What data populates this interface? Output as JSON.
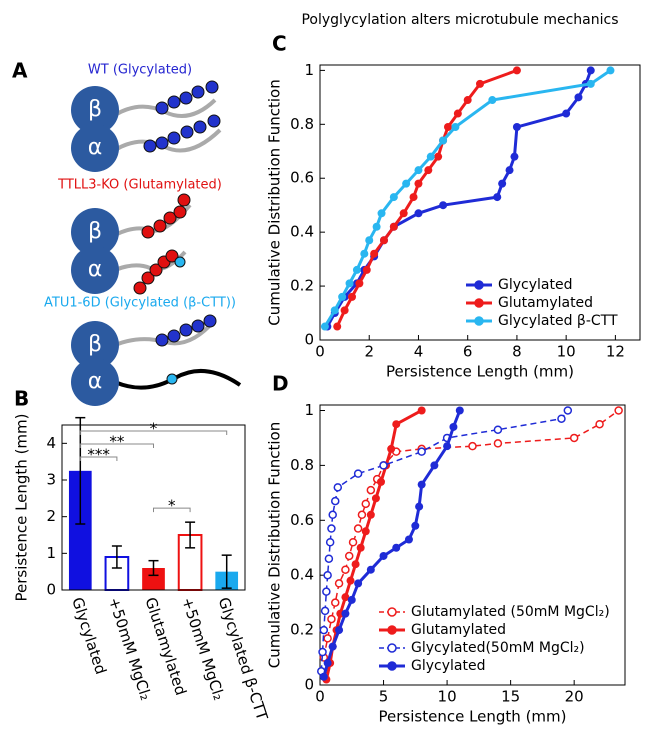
{
  "title": "Polyglycylation alters microtubule mechanics",
  "diagram": {
    "label": "A",
    "beta": "β",
    "alpha": "α",
    "rows": [
      {
        "caption": "WT (Glycylated)"
      },
      {
        "caption": "TTLL3-KO (Glutamylated)"
      },
      {
        "caption": "ATU1-6D (Glycylated (β-CTT))"
      }
    ]
  },
  "chart_data": [
    {
      "type": "bar",
      "label": "B",
      "ylabel": "Persistence Length (mm)",
      "categories": [
        "Glycylated",
        "+50mM MgCl₂",
        "Glutamylated",
        "+50mM MgCl₂",
        "Glycylated β-CTT"
      ],
      "values": [
        3.25,
        0.9,
        0.6,
        1.5,
        0.5
      ],
      "errors": [
        1.45,
        0.3,
        0.2,
        0.35,
        0.45
      ],
      "colors": [
        "#1010e0",
        "#1010e0",
        "#ee1111",
        "#ee1111",
        "#1aa9ee"
      ],
      "hollow": [
        false,
        true,
        false,
        true,
        false
      ],
      "ylim": [
        0,
        4.5
      ],
      "yticks": [
        0,
        1,
        2,
        3,
        4
      ],
      "significance": [
        {
          "label": "*",
          "from": 0,
          "to": 4
        },
        {
          "label": "**",
          "from": 0,
          "to": 2
        },
        {
          "label": "***",
          "from": 0,
          "to": 1
        },
        {
          "label": "*",
          "from": 2,
          "to": 3
        }
      ]
    },
    {
      "type": "line",
      "label": "C",
      "xlabel": "Persistence Length (mm)",
      "ylabel": "Cumulative Distribution Function",
      "xlim": [
        0,
        13
      ],
      "xticks": [
        0,
        2,
        4,
        6,
        8,
        10,
        12
      ],
      "ylim": [
        0,
        1.02
      ],
      "yticks": [
        0,
        0.2,
        0.4,
        0.6,
        0.8,
        1
      ],
      "legend": "lower right",
      "series": [
        {
          "name": "Glycylated",
          "color": "#1f2bd6",
          "dashed": false,
          "hollow": false,
          "x": [
            0.3,
            0.6,
            1.0,
            1.5,
            1.8,
            2.2,
            2.6,
            3.0,
            4.0,
            5.0,
            7.2,
            7.4,
            7.7,
            7.9,
            8.0,
            10.0,
            10.5,
            10.8,
            11.0
          ],
          "values": [
            0.05,
            0.1,
            0.16,
            0.21,
            0.26,
            0.31,
            0.37,
            0.42,
            0.47,
            0.5,
            0.53,
            0.58,
            0.63,
            0.68,
            0.79,
            0.84,
            0.9,
            0.95,
            1.0
          ]
        },
        {
          "name": "Glutamylated",
          "color": "#ee1c1c",
          "dashed": false,
          "hollow": false,
          "x": [
            0.7,
            1.0,
            1.3,
            1.6,
            1.9,
            2.2,
            2.6,
            3.0,
            3.4,
            3.8,
            4.0,
            4.4,
            4.8,
            5.0,
            5.2,
            5.6,
            6.0,
            6.5,
            8.0
          ],
          "values": [
            0.05,
            0.11,
            0.16,
            0.21,
            0.26,
            0.32,
            0.37,
            0.42,
            0.47,
            0.53,
            0.58,
            0.63,
            0.68,
            0.74,
            0.79,
            0.84,
            0.89,
            0.95,
            1.0
          ]
        },
        {
          "name": "Glycylated β-CTT",
          "color": "#29b6f0",
          "dashed": false,
          "hollow": false,
          "x": [
            0.2,
            0.6,
            0.9,
            1.2,
            1.5,
            1.8,
            2.0,
            2.3,
            2.5,
            3.0,
            3.5,
            4.0,
            4.5,
            5.0,
            5.5,
            7.0,
            11.0,
            11.8
          ],
          "values": [
            0.05,
            0.11,
            0.16,
            0.21,
            0.26,
            0.32,
            0.37,
            0.42,
            0.47,
            0.53,
            0.58,
            0.63,
            0.68,
            0.74,
            0.79,
            0.89,
            0.95,
            1.0
          ]
        }
      ]
    },
    {
      "type": "line",
      "label": "D",
      "xlabel": "Persistence Length (mm)",
      "ylabel": "Cumulative Distribution Function",
      "xlim": [
        0,
        24
      ],
      "xticks": [
        0,
        5,
        10,
        15,
        20
      ],
      "ylim": [
        0,
        1.02
      ],
      "yticks": [
        0,
        0.2,
        0.4,
        0.6,
        0.8,
        1
      ],
      "legend": "lower right",
      "series": [
        {
          "name": "Glutamylated (50mM MgCl₂)",
          "color": "#ee1c1c",
          "dashed": true,
          "hollow": true,
          "x": [
            0.3,
            0.6,
            0.9,
            1.2,
            1.5,
            2,
            2.3,
            2.6,
            3,
            3.3,
            3.6,
            4,
            4.5,
            5,
            6,
            8,
            12,
            14,
            20,
            22,
            23.5
          ],
          "values": [
            0.1,
            0.17,
            0.24,
            0.3,
            0.37,
            0.42,
            0.47,
            0.52,
            0.57,
            0.62,
            0.66,
            0.71,
            0.75,
            0.8,
            0.85,
            0.86,
            0.87,
            0.88,
            0.9,
            0.95,
            1.0
          ]
        },
        {
          "name": "Glutamylated",
          "color": "#ee1c1c",
          "dashed": false,
          "hollow": false,
          "x": [
            0.5,
            0.8,
            1,
            1.3,
            1.6,
            2,
            2.4,
            2.8,
            3.2,
            3.6,
            4,
            4.4,
            4.8,
            5.2,
            5.6,
            6,
            8
          ],
          "values": [
            0.02,
            0.08,
            0.14,
            0.2,
            0.26,
            0.32,
            0.38,
            0.44,
            0.5,
            0.56,
            0.62,
            0.68,
            0.74,
            0.8,
            0.86,
            0.95,
            1.0
          ]
        },
        {
          "name": "Glycylated(50mM MgCl₂)",
          "color": "#1f2bd6",
          "dashed": true,
          "hollow": true,
          "x": [
            0.1,
            0.2,
            0.3,
            0.4,
            0.5,
            0.6,
            0.7,
            0.8,
            0.9,
            1.0,
            1.2,
            1.4,
            3,
            5,
            8,
            10,
            14,
            19,
            19.5
          ],
          "values": [
            0.05,
            0.12,
            0.2,
            0.27,
            0.34,
            0.4,
            0.46,
            0.52,
            0.57,
            0.62,
            0.67,
            0.72,
            0.77,
            0.8,
            0.85,
            0.9,
            0.93,
            0.97,
            1.0
          ]
        },
        {
          "name": "Glycylated",
          "color": "#1f2bd6",
          "dashed": false,
          "hollow": false,
          "x": [
            0.3,
            0.6,
            1,
            1.5,
            2,
            2.5,
            3,
            4,
            5,
            6,
            7,
            7.5,
            7.8,
            8,
            9,
            10,
            10.5,
            11
          ],
          "values": [
            0.03,
            0.08,
            0.14,
            0.2,
            0.26,
            0.31,
            0.37,
            0.42,
            0.47,
            0.5,
            0.53,
            0.58,
            0.65,
            0.73,
            0.8,
            0.87,
            0.94,
            1.0
          ]
        }
      ]
    }
  ]
}
